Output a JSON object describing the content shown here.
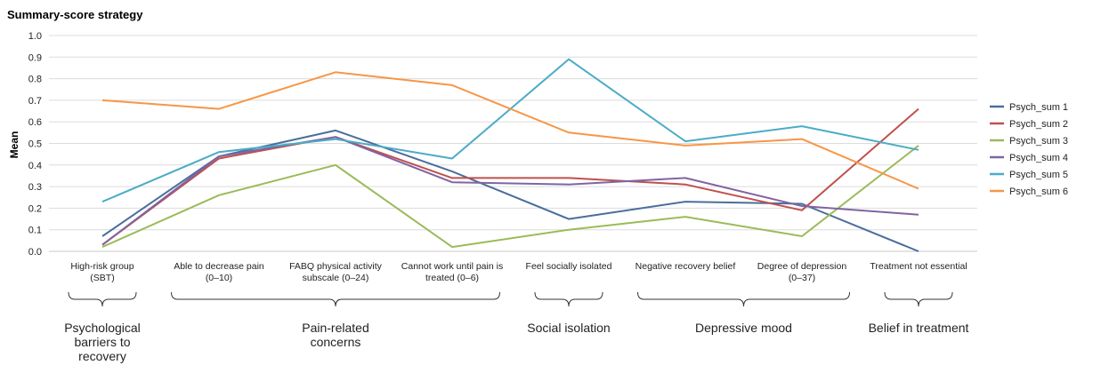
{
  "chart_data": {
    "type": "line",
    "title": "Summary-score strategy",
    "ylabel": "Mean",
    "xlabel": "",
    "ylim": [
      0,
      1
    ],
    "yticks": [
      "0.0",
      "0.1",
      "0.2",
      "0.3",
      "0.4",
      "0.5",
      "0.6",
      "0.7",
      "0.8",
      "0.9",
      "1.0"
    ],
    "grid": true,
    "legend_position": "right",
    "categories": [
      [
        "High-risk group",
        "(SBT)"
      ],
      [
        "Able to decrease pain",
        "(0–10)"
      ],
      [
        "FABQ physical activity",
        "subscale (0–24)"
      ],
      [
        "Cannot work until pain is",
        "treated (0–6)"
      ],
      [
        "Feel socially isolated"
      ],
      [
        "Negative recovery belief"
      ],
      [
        "Degree of depression",
        "(0–37)"
      ],
      [
        "Treatment not essential"
      ]
    ],
    "series": [
      {
        "name": "Psych_sum 1",
        "color": "#4a6e9c",
        "values": [
          0.07,
          0.44,
          0.56,
          0.37,
          0.15,
          0.23,
          0.22,
          0.0
        ]
      },
      {
        "name": "Psych_sum 2",
        "color": "#c0504d",
        "values": [
          0.03,
          0.43,
          0.53,
          0.34,
          0.34,
          0.31,
          0.19,
          0.66
        ]
      },
      {
        "name": "Psych_sum 3",
        "color": "#9bbb59",
        "values": [
          0.02,
          0.26,
          0.4,
          0.02,
          0.1,
          0.16,
          0.07,
          0.49
        ]
      },
      {
        "name": "Psych_sum 4",
        "color": "#8064a2",
        "values": [
          0.03,
          0.44,
          0.53,
          0.32,
          0.31,
          0.34,
          0.21,
          0.17
        ]
      },
      {
        "name": "Psych_sum 5",
        "color": "#4bacc6",
        "values": [
          0.23,
          0.46,
          0.52,
          0.43,
          0.89,
          0.51,
          0.58,
          0.47
        ]
      },
      {
        "name": "Psych_sum 6",
        "color": "#f79646",
        "values": [
          0.7,
          0.66,
          0.83,
          0.77,
          0.55,
          0.49,
          0.52,
          0.29
        ]
      }
    ],
    "groups": [
      {
        "label": [
          "Psychological",
          "barriers to",
          "recovery"
        ],
        "from": 0,
        "to": 0
      },
      {
        "label": [
          "Pain-related",
          "concerns"
        ],
        "from": 1,
        "to": 3
      },
      {
        "label": [
          "Social isolation"
        ],
        "from": 4,
        "to": 4
      },
      {
        "label": [
          "Depressive mood"
        ],
        "from": 5,
        "to": 6
      },
      {
        "label": [
          "Belief in treatment"
        ],
        "from": 7,
        "to": 7
      }
    ]
  }
}
